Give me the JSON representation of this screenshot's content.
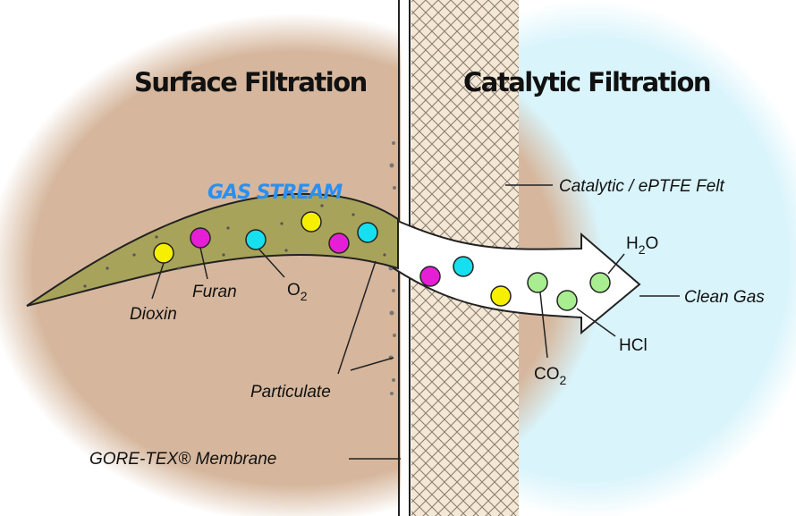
{
  "headings": {
    "left": "Surface Filtration",
    "right": "Catalytic Filtration"
  },
  "stream_label": "GAS STREAM",
  "labels": {
    "felt": "Catalytic / ePTFE Felt",
    "clean_gas": "Clean Gas",
    "h2o": [
      "H",
      "2",
      "O"
    ],
    "hcl": "HCl",
    "co2": [
      "CO",
      "2"
    ],
    "dioxin": "Dioxin",
    "furan": "Furan",
    "o2": [
      "O",
      "2"
    ],
    "particulate": "Particulate",
    "membrane": "GORE-TEX® Membrane"
  }
}
